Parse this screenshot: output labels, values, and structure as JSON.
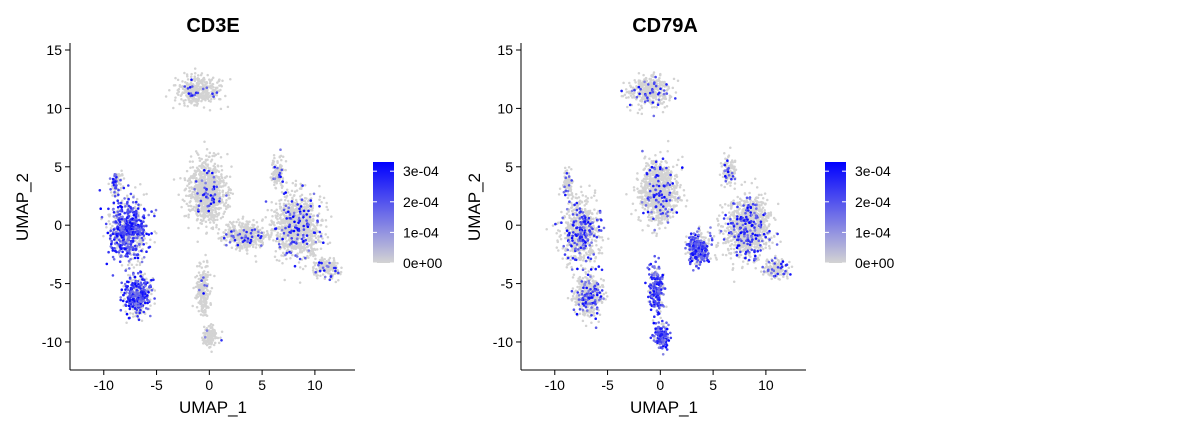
{
  "chart_data": [
    {
      "type": "scatter",
      "subtype": "umap-feature-plot",
      "title": "CD3E",
      "xlabel": "UMAP_1",
      "ylabel": "UMAP_2",
      "xlim": [
        -13.2,
        13.8
      ],
      "ylim": [
        -12.4,
        15.6
      ],
      "x_ticks": [
        -10,
        -5,
        0,
        5,
        10
      ],
      "x_tick_labels": [
        "-10",
        "-5",
        "0",
        "5",
        "10"
      ],
      "y_ticks": [
        -10,
        -5,
        0,
        5,
        10,
        15
      ],
      "y_tick_labels": [
        "-10",
        "-5",
        "0",
        "5",
        "10",
        "15"
      ],
      "grid": false,
      "legend": {
        "position": "right",
        "type": "colorbar",
        "range": [
          0,
          0.00033
        ],
        "ticks": [
          0,
          0.0001,
          0.0002,
          0.0003
        ],
        "tick_labels": [
          "0e+00",
          "1e-04",
          "2e-04",
          "3e-04"
        ],
        "low_color": "#d3d3d3",
        "high_color": "#0000ff"
      },
      "clusters": [
        {
          "name": "left-upper",
          "cx": -7.6,
          "cy": -0.5,
          "sx": 1.6,
          "sy": 2.4,
          "n": 700,
          "expr_frac": 0.55
        },
        {
          "name": "left-lower",
          "cx": -6.8,
          "cy": -6.0,
          "sx": 1.2,
          "sy": 1.6,
          "n": 420,
          "expr_frac": 0.55
        },
        {
          "name": "left-top-spike",
          "cx": -8.8,
          "cy": 3.5,
          "sx": 0.5,
          "sy": 1.0,
          "n": 90,
          "expr_frac": 0.4
        },
        {
          "name": "central-stem",
          "cx": -0.2,
          "cy": 2.8,
          "sx": 1.6,
          "sy": 2.4,
          "n": 900,
          "expr_frac": 0.05
        },
        {
          "name": "top-blob",
          "cx": -1.0,
          "cy": 11.5,
          "sx": 1.8,
          "sy": 1.1,
          "n": 380,
          "expr_frac": 0.03
        },
        {
          "name": "right-mass",
          "cx": 8.3,
          "cy": -0.2,
          "sx": 2.0,
          "sy": 2.5,
          "n": 1000,
          "expr_frac": 0.12
        },
        {
          "name": "mid-band",
          "cx": 3.3,
          "cy": -0.9,
          "sx": 1.6,
          "sy": 1.0,
          "n": 420,
          "expr_frac": 0.08
        },
        {
          "name": "right-tail",
          "cx": 11.0,
          "cy": -3.7,
          "sx": 1.1,
          "sy": 0.7,
          "n": 160,
          "expr_frac": 0.1
        },
        {
          "name": "bottom-stem",
          "cx": -0.6,
          "cy": -5.5,
          "sx": 0.6,
          "sy": 1.8,
          "n": 220,
          "expr_frac": 0.02
        },
        {
          "name": "bottom-blob",
          "cx": 0.1,
          "cy": -9.5,
          "sx": 0.6,
          "sy": 0.8,
          "n": 140,
          "expr_frac": 0.02
        },
        {
          "name": "upper-right-arm",
          "cx": 6.5,
          "cy": 4.5,
          "sx": 0.6,
          "sy": 1.1,
          "n": 120,
          "expr_frac": 0.08
        }
      ]
    },
    {
      "type": "scatter",
      "subtype": "umap-feature-plot",
      "title": "CD79A",
      "xlabel": "UMAP_1",
      "ylabel": "UMAP_2",
      "xlim": [
        -13.2,
        13.8
      ],
      "ylim": [
        -12.4,
        15.6
      ],
      "x_ticks": [
        -10,
        -5,
        0,
        5,
        10
      ],
      "x_tick_labels": [
        "-10",
        "-5",
        "0",
        "5",
        "10"
      ],
      "y_ticks": [
        -10,
        -5,
        0,
        5,
        10,
        15
      ],
      "y_tick_labels": [
        "-10",
        "-5",
        "0",
        "5",
        "10",
        "15"
      ],
      "grid": false,
      "legend": {
        "position": "right",
        "type": "colorbar",
        "range": [
          0,
          0.00033
        ],
        "ticks": [
          0,
          0.0001,
          0.0002,
          0.0003
        ],
        "tick_labels": [
          "0e+00",
          "1e-04",
          "2e-04",
          "3e-04"
        ],
        "low_color": "#d3d3d3",
        "high_color": "#0000ff"
      },
      "clusters": [
        {
          "name": "left-upper",
          "cx": -7.6,
          "cy": -0.5,
          "sx": 1.6,
          "sy": 2.4,
          "n": 700,
          "expr_frac": 0.22
        },
        {
          "name": "left-lower",
          "cx": -6.8,
          "cy": -6.0,
          "sx": 1.2,
          "sy": 1.6,
          "n": 420,
          "expr_frac": 0.22
        },
        {
          "name": "left-top-spike",
          "cx": -8.8,
          "cy": 3.5,
          "sx": 0.5,
          "sy": 1.0,
          "n": 90,
          "expr_frac": 0.15
        },
        {
          "name": "central-stem",
          "cx": -0.2,
          "cy": 2.8,
          "sx": 1.6,
          "sy": 2.4,
          "n": 900,
          "expr_frac": 0.08
        },
        {
          "name": "top-blob",
          "cx": -1.0,
          "cy": 11.5,
          "sx": 1.8,
          "sy": 1.1,
          "n": 380,
          "expr_frac": 0.08
        },
        {
          "name": "right-mass",
          "cx": 8.3,
          "cy": -0.2,
          "sx": 2.0,
          "sy": 2.5,
          "n": 1000,
          "expr_frac": 0.15
        },
        {
          "name": "mid-band",
          "cx": 3.6,
          "cy": -2.0,
          "sx": 0.9,
          "sy": 1.1,
          "n": 380,
          "expr_frac": 0.5
        },
        {
          "name": "right-tail",
          "cx": 11.0,
          "cy": -3.7,
          "sx": 1.1,
          "sy": 0.7,
          "n": 160,
          "expr_frac": 0.15
        },
        {
          "name": "bottom-stem",
          "cx": -0.4,
          "cy": -5.5,
          "sx": 0.7,
          "sy": 1.8,
          "n": 240,
          "expr_frac": 0.65
        },
        {
          "name": "bottom-blob",
          "cx": 0.1,
          "cy": -9.5,
          "sx": 0.6,
          "sy": 0.8,
          "n": 170,
          "expr_frac": 0.8
        },
        {
          "name": "upper-right-arm",
          "cx": 6.5,
          "cy": 4.5,
          "sx": 0.6,
          "sy": 1.1,
          "n": 120,
          "expr_frac": 0.12
        }
      ]
    }
  ]
}
